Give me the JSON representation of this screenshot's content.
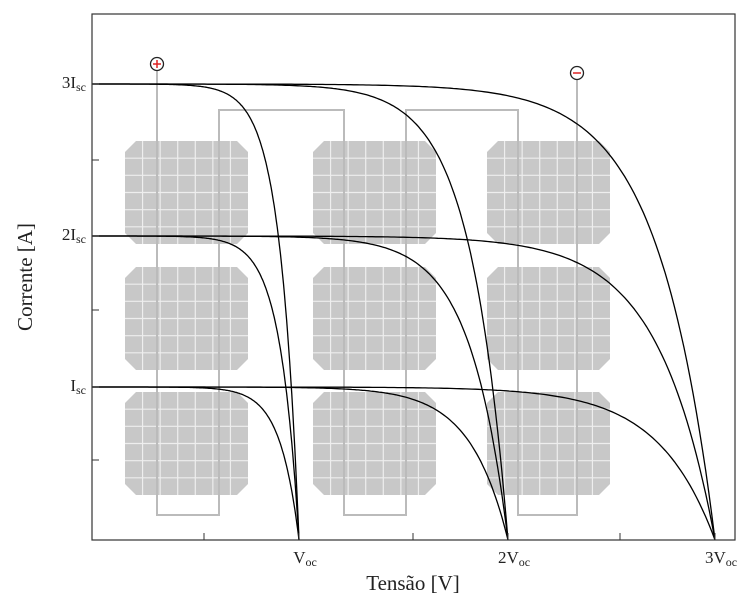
{
  "axes": {
    "x_label": "Tensão [V]",
    "y_label": "Corrente [A]"
  },
  "x_ticks": [
    {
      "main": "V",
      "sub": "oc"
    },
    {
      "main": "2V",
      "sub": "oc"
    },
    {
      "main": "3V",
      "sub": "oc"
    }
  ],
  "y_ticks": [
    {
      "main": "3I",
      "sub": "sc"
    },
    {
      "main": "2I",
      "sub": "sc"
    },
    {
      "main": "I",
      "sub": "sc"
    }
  ]
}
